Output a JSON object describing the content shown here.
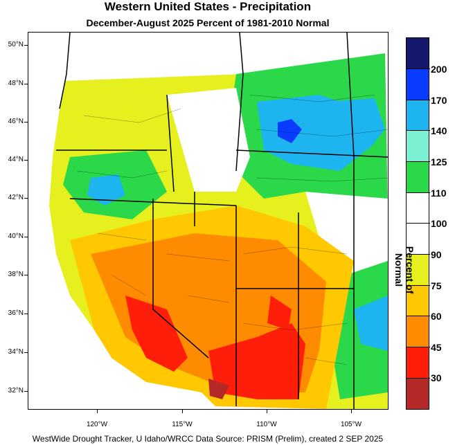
{
  "title": "Western United States - Precipitation",
  "subtitle": "December-August 2025  Percent of 1981-2010 Normal",
  "footer": "WestWide Drought Tracker, U Idaho/WRCC Data Source: PRISM (Prelim), created  2 SEP 2025",
  "colorbar": {
    "title": "Percent of Normal",
    "labels": [
      "200",
      "170",
      "140",
      "125",
      "110",
      "100",
      "90",
      "75",
      "60",
      "45",
      "30"
    ],
    "colors": [
      "#14196e",
      "#0a3cff",
      "#1eb4f0",
      "#7cf0d2",
      "#2ad84a",
      "#ffffff",
      "#ffffff",
      "#e6f01e",
      "#ffc800",
      "#ff8c00",
      "#ff1e0a",
      "#b42828"
    ]
  },
  "axes": {
    "lat_labels": [
      "50°N",
      "48°N",
      "46°N",
      "44°N",
      "42°N",
      "40°N",
      "38°N",
      "36°N",
      "34°N",
      "32°N"
    ],
    "lon_labels": [
      "120°W",
      "115°W",
      "110°W",
      "105°W"
    ]
  }
}
